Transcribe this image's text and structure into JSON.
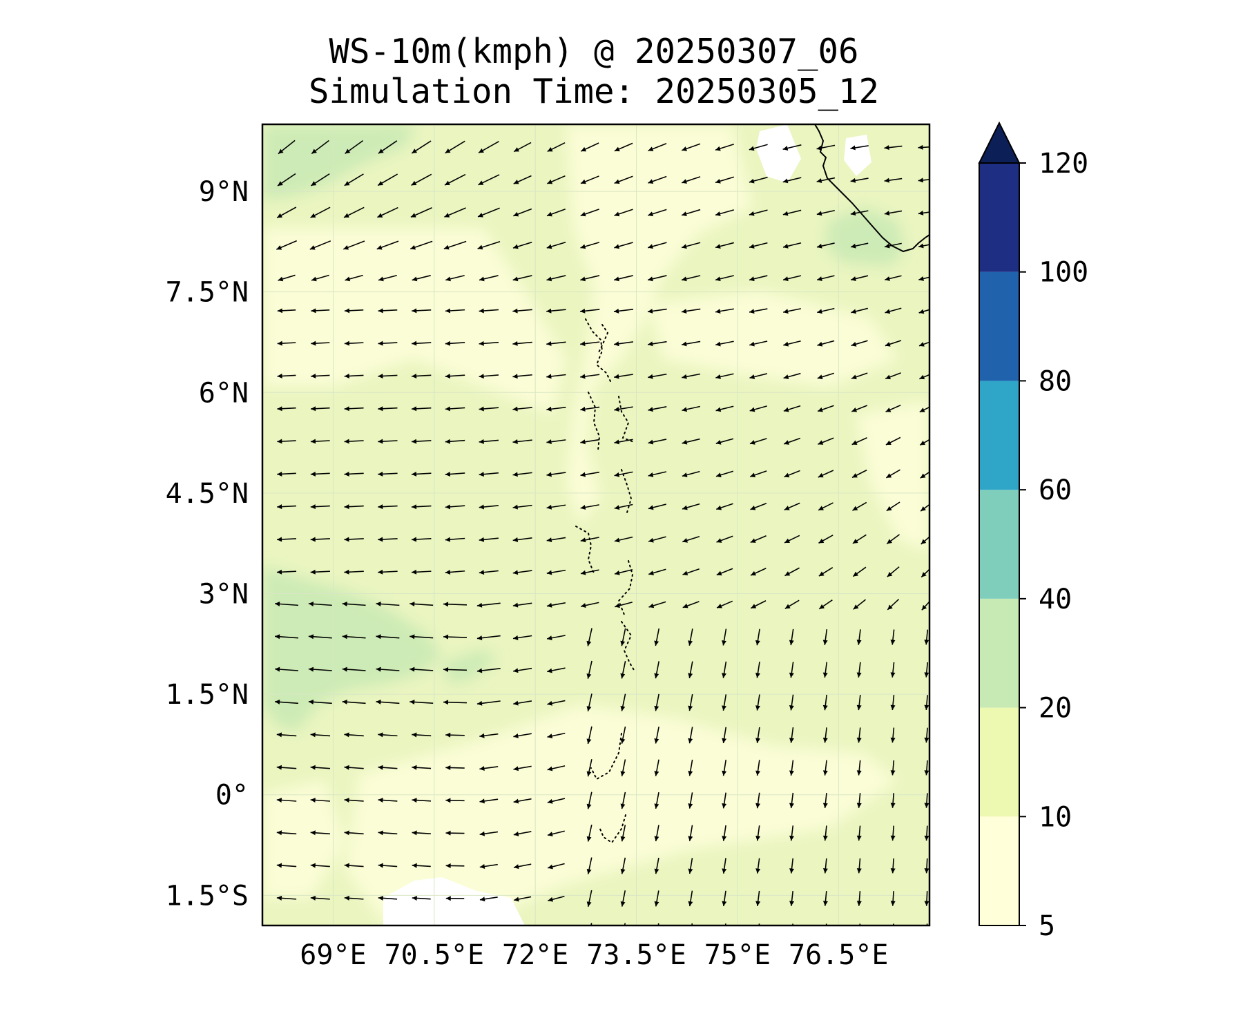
{
  "title": {
    "line1": "WS-10m(kmph) @ 20250307_06",
    "line2": "Simulation Time: 20250305_12"
  },
  "map": {
    "lon_range": [
      67.95,
      77.85
    ],
    "lat_range": [
      -1.95,
      10.0
    ],
    "lon_ticks": [
      {
        "value": 69.0,
        "label": "69°E"
      },
      {
        "value": 70.5,
        "label": "70.5°E"
      },
      {
        "value": 72.0,
        "label": "72°E"
      },
      {
        "value": 73.5,
        "label": "73.5°E"
      },
      {
        "value": 75.0,
        "label": "75°E"
      },
      {
        "value": 76.5,
        "label": "76.5°E"
      }
    ],
    "lat_ticks": [
      {
        "value": 9.0,
        "label": "9°N"
      },
      {
        "value": 7.5,
        "label": "7.5°N"
      },
      {
        "value": 6.0,
        "label": "6°N"
      },
      {
        "value": 4.5,
        "label": "4.5°N"
      },
      {
        "value": 3.0,
        "label": "3°N"
      },
      {
        "value": 1.5,
        "label": "1.5°N"
      },
      {
        "value": 0.0,
        "label": "0°"
      },
      {
        "value": -1.5,
        "label": "1.5°S"
      }
    ],
    "grid": true,
    "background_color": "#eaf5c0"
  },
  "colorbar": {
    "levels": [
      5,
      10,
      20,
      40,
      60,
      80,
      100,
      120
    ],
    "tick_labels": [
      "5",
      "10",
      "20",
      "40",
      "60",
      "80",
      "100",
      "120"
    ],
    "colors": [
      "#ffffd9",
      "#edf8b1",
      "#c7e9b4",
      "#7fcdbb",
      "#2fa5c8",
      "#2162ad",
      "#1d2e83"
    ],
    "extend_color": "#0c1f56",
    "extend": "max"
  }
}
